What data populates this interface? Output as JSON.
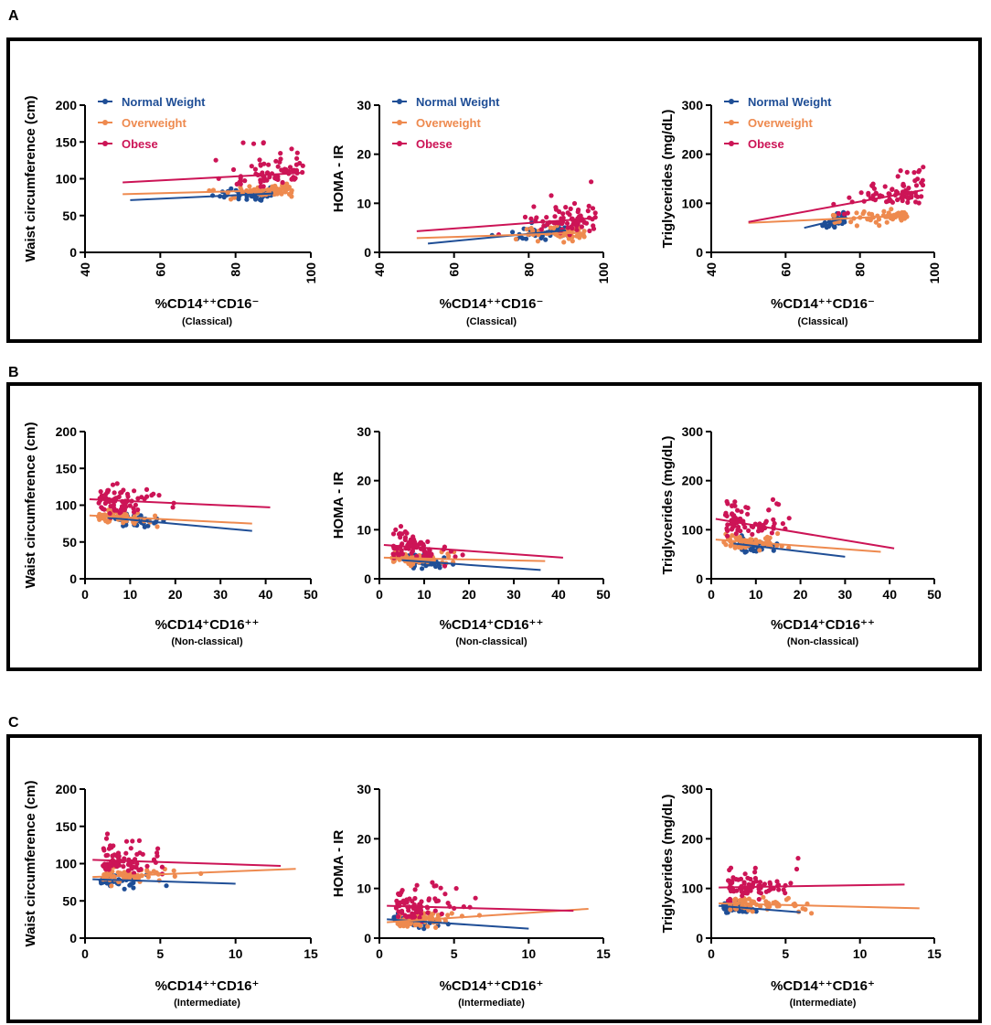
{
  "colors": {
    "normal": "#1f4e96",
    "overweight": "#ee8a4f",
    "obese": "#cc1456"
  },
  "legend": [
    {
      "key": "normal",
      "label": "Normal Weight"
    },
    {
      "key": "overweight",
      "label": "Overweight"
    },
    {
      "key": "obese",
      "label": "Obese"
    }
  ],
  "chart_data": [
    {
      "panel": "A",
      "type": "scatter",
      "subtype": "Classical",
      "xlabel": "%CD14⁺⁺CD16⁻",
      "xsub": "(Classical)",
      "xlim": [
        40,
        100
      ],
      "xticks": [
        40,
        60,
        80,
        100
      ],
      "plots": [
        {
          "ylabel": "Waist circumference (cm)",
          "ylim": [
            0,
            200
          ],
          "yticks": [
            0,
            50,
            100,
            150,
            200
          ],
          "legend": true,
          "fits": {
            "normal": [
              [
                52,
                71
              ],
              [
                90,
                80
              ]
            ],
            "overweight": [
              [
                50,
                79
              ],
              [
                95,
                85
              ]
            ],
            "obese": [
              [
                50,
                95
              ],
              [
                98,
                108
              ]
            ]
          }
        },
        {
          "ylabel": "HOMA - IR",
          "ylim": [
            0,
            30
          ],
          "yticks": [
            0,
            10,
            20,
            30
          ],
          "legend": true,
          "fits": {
            "normal": [
              [
                53,
                1.8
              ],
              [
                90,
                4.5
              ]
            ],
            "overweight": [
              [
                50,
                2.9
              ],
              [
                95,
                4.0
              ]
            ],
            "obese": [
              [
                50,
                4.3
              ],
              [
                98,
                7.0
              ]
            ]
          }
        },
        {
          "ylabel": "Triglycerides (mg/dL)",
          "ylim": [
            0,
            300
          ],
          "yticks": [
            0,
            100,
            200,
            300
          ],
          "legend": true,
          "fits": {
            "normal": [
              [
                65,
                50
              ],
              [
                76,
                70
              ]
            ],
            "overweight": [
              [
                50,
                60
              ],
              [
                93,
                75
              ]
            ],
            "obese": [
              [
                50,
                62
              ],
              [
                97,
                127
              ]
            ]
          }
        }
      ]
    },
    {
      "panel": "B",
      "type": "scatter",
      "subtype": "Non-classical",
      "xlabel": "%CD14⁺CD16⁺⁺",
      "xsub": "(Non-classical)",
      "xlim": [
        0,
        50
      ],
      "xticks": [
        0,
        10,
        20,
        30,
        40,
        50
      ],
      "plots": [
        {
          "ylabel": "Waist circumference (cm)",
          "ylim": [
            0,
            200
          ],
          "yticks": [
            0,
            50,
            100,
            150,
            200
          ],
          "legend": false,
          "fits": {
            "normal": [
              [
                5,
                83
              ],
              [
                37,
                65
              ]
            ],
            "overweight": [
              [
                1,
                86
              ],
              [
                37,
                75
              ]
            ],
            "obese": [
              [
                1,
                108
              ],
              [
                41,
                97
              ]
            ]
          }
        },
        {
          "ylabel": "HOMA - IR",
          "ylim": [
            0,
            30
          ],
          "yticks": [
            0,
            10,
            20,
            30
          ],
          "legend": false,
          "fits": {
            "normal": [
              [
                5,
                3.8
              ],
              [
                36,
                1.8
              ]
            ],
            "overweight": [
              [
                1,
                4.3
              ],
              [
                37,
                3.6
              ]
            ],
            "obese": [
              [
                1,
                6.9
              ],
              [
                41,
                4.3
              ]
            ]
          }
        },
        {
          "ylabel": "Triglycerides (mg/dL)",
          "ylim": [
            0,
            300
          ],
          "yticks": [
            0,
            100,
            200,
            300
          ],
          "legend": false,
          "fits": {
            "normal": [
              [
                5,
                72
              ],
              [
                30,
                45
              ]
            ],
            "overweight": [
              [
                1,
                80
              ],
              [
                38,
                55
              ]
            ],
            "obese": [
              [
                1,
                122
              ],
              [
                41,
                62
              ]
            ]
          }
        }
      ]
    },
    {
      "panel": "C",
      "type": "scatter",
      "subtype": "Intermediate",
      "xlabel": "%CD14⁺⁺CD16⁺",
      "xsub": "(Intermediate)",
      "xlim": [
        0,
        15
      ],
      "xticks": [
        0,
        5,
        10,
        15
      ],
      "plots": [
        {
          "ylabel": "Waist circumference (cm)",
          "ylim": [
            0,
            200
          ],
          "yticks": [
            0,
            50,
            100,
            150,
            200
          ],
          "legend": false,
          "fits": {
            "normal": [
              [
                0.5,
                79
              ],
              [
                10,
                73
              ]
            ],
            "overweight": [
              [
                0.5,
                82
              ],
              [
                14,
                93
              ]
            ],
            "obese": [
              [
                0.5,
                105
              ],
              [
                13,
                97
              ]
            ]
          }
        },
        {
          "ylabel": "HOMA - IR",
          "ylim": [
            0,
            30
          ],
          "yticks": [
            0,
            10,
            20,
            30
          ],
          "legend": false,
          "fits": {
            "normal": [
              [
                0.5,
                3.8
              ],
              [
                10,
                1.9
              ]
            ],
            "overweight": [
              [
                0.5,
                3.2
              ],
              [
                14,
                5.9
              ]
            ],
            "obese": [
              [
                0.5,
                6.5
              ],
              [
                13,
                5.5
              ]
            ]
          }
        },
        {
          "ylabel": "Triglycerides (mg/dL)",
          "ylim": [
            0,
            300
          ],
          "yticks": [
            0,
            100,
            200,
            300
          ],
          "legend": false,
          "fits": {
            "normal": [
              [
                0.5,
                65
              ],
              [
                6,
                52
              ]
            ],
            "overweight": [
              [
                0.5,
                70
              ],
              [
                14,
                60
              ]
            ],
            "obese": [
              [
                0.5,
                102
              ],
              [
                13,
                108
              ]
            ]
          }
        }
      ]
    }
  ]
}
